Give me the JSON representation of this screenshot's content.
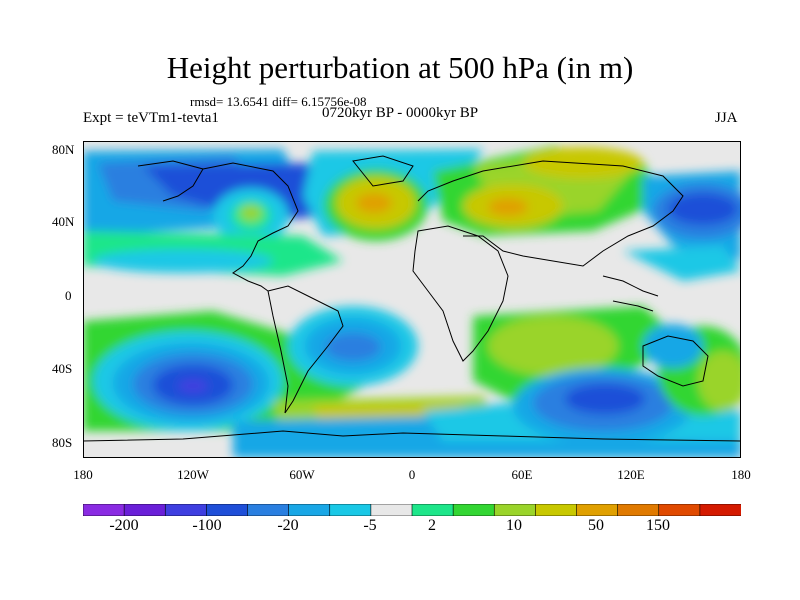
{
  "plot": {
    "title": "Height perturbation at 500 hPa (in m)",
    "stats": "rmsd= 13.6541  diff= 6.15756e-08",
    "experiment": "Expt = teVTm1-tevta1",
    "period": "0720kyr BP - 0000kyr BP",
    "season": "JJA"
  },
  "axes": {
    "lat_labels": [
      "80N",
      "40N",
      "0",
      "40S",
      "80S"
    ],
    "lon_labels": [
      "180",
      "120W",
      "60W",
      "0",
      "60E",
      "120E",
      "180"
    ]
  },
  "colorbar": {
    "labels": [
      "-200",
      "-100",
      "-20",
      "-5",
      "2",
      "10",
      "50",
      "150"
    ],
    "colors": [
      "#8a2be2",
      "#6a1fd8",
      "#3f3fe0",
      "#1f4fd8",
      "#2a7fe0",
      "#19a7e6",
      "#1ac8e6",
      "#e8e8e8",
      "#1ee68a",
      "#33d633",
      "#9ad42a",
      "#c8c800",
      "#e0a000",
      "#e07a00",
      "#e04a00",
      "#d41a00"
    ]
  },
  "map_data": {
    "projection": "cylindrical-equidistant",
    "lon_range": [
      -180,
      180
    ],
    "lat_range": [
      -90,
      90
    ],
    "coastlines": true,
    "features": [
      {
        "label": "neg-north-pacific",
        "lon": -150,
        "lat": 60,
        "value": -20
      },
      {
        "label": "neg-north-america",
        "lon": -100,
        "lat": 55,
        "value": -20
      },
      {
        "label": "pos-great-lakes",
        "lon": -85,
        "lat": 42,
        "value": 10
      },
      {
        "label": "pos-north-atlantic",
        "lon": -25,
        "lat": 45,
        "value": 50
      },
      {
        "label": "pos-europe-asia",
        "lon": 60,
        "lat": 55,
        "value": 50
      },
      {
        "label": "neg-north-pacific-east",
        "lon": 165,
        "lat": 45,
        "value": -20
      },
      {
        "label": "neg-south-pacific",
        "lon": -130,
        "lat": -45,
        "value": -100
      },
      {
        "label": "neg-south-atlantic",
        "lon": -45,
        "lat": -25,
        "value": -20
      },
      {
        "label": "neg-south-indian",
        "lon": 90,
        "lat": -55,
        "value": -20
      },
      {
        "label": "pos-southern-band",
        "lon": 0,
        "lat": -60,
        "value": 10
      },
      {
        "label": "pos-indian-ocean",
        "lon": 60,
        "lat": -15,
        "value": 10
      },
      {
        "label": "pos-australia",
        "lon": 140,
        "lat": -25,
        "value": 10
      }
    ]
  }
}
